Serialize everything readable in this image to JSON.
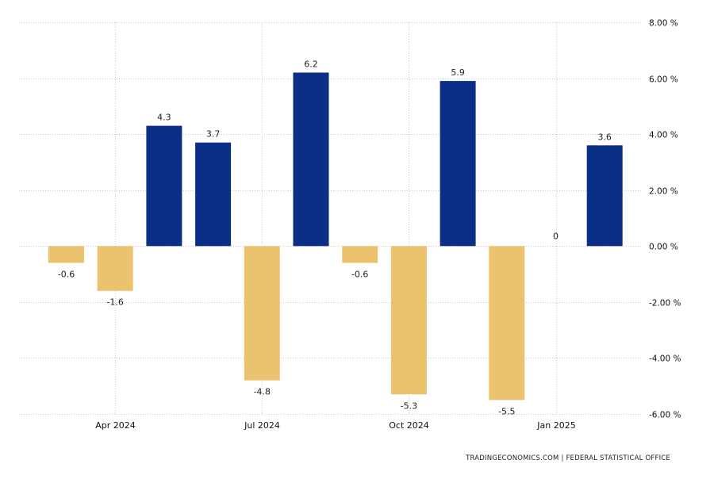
{
  "chart_data": {
    "type": "bar",
    "x": [
      "2024-03",
      "2024-04",
      "2024-05",
      "2024-06",
      "2024-07",
      "2024-08",
      "2024-09",
      "2024-10",
      "2024-11",
      "2024-12",
      "2025-01",
      "2025-02"
    ],
    "values": [
      -0.6,
      -1.6,
      4.3,
      3.7,
      -4.8,
      6.2,
      -0.6,
      -5.3,
      5.9,
      -5.5,
      0,
      3.6
    ],
    "data_labels": [
      "-0.6",
      "-1.6",
      "4.3",
      "3.7",
      "-4.8",
      "6.2",
      "-0.6",
      "-5.3",
      "5.9",
      "-5.5",
      "0",
      "3.6"
    ],
    "ylim": [
      -6,
      8
    ],
    "y_ticks": [
      8,
      6,
      4,
      2,
      0,
      -2,
      -4,
      -6
    ],
    "y_tick_labels": [
      "8.00 %",
      "6.00 %",
      "4.00 %",
      "2.00 %",
      "0.00 %",
      "-2.00 %",
      "-4.00 %",
      "-6.00 %"
    ],
    "x_tick_labels": [
      {
        "label": "Apr 2024",
        "x": "2024-04"
      },
      {
        "label": "Jul 2024",
        "x": "2024-07"
      },
      {
        "label": "Oct 2024",
        "x": "2024-10"
      },
      {
        "label": "Jan 2025",
        "x": "2025-01"
      }
    ],
    "grid": true,
    "y_axis_position": "right",
    "colors": {
      "positive": "#0b2f86",
      "negative": "#ebc36f"
    },
    "title": "",
    "xlabel": "",
    "ylabel": ""
  },
  "footer": {
    "source": "TRADINGECONOMICS.COM  |  FEDERAL STATISTICAL OFFICE"
  }
}
